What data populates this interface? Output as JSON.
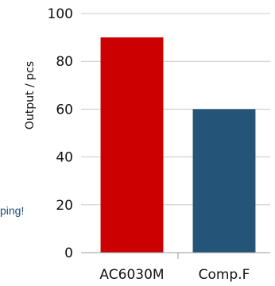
{
  "chart_data": {
    "type": "bar",
    "categories": [
      "AC6030M",
      "Comp.F"
    ],
    "values": [
      90,
      60
    ],
    "colors": [
      "#cc0000",
      "#245478"
    ],
    "ylabel": "Output / pcs",
    "ylim": [
      0,
      100
    ],
    "yticks": [
      0,
      20,
      40,
      60,
      80,
      100
    ],
    "grid": true
  },
  "side_note": "ping!"
}
